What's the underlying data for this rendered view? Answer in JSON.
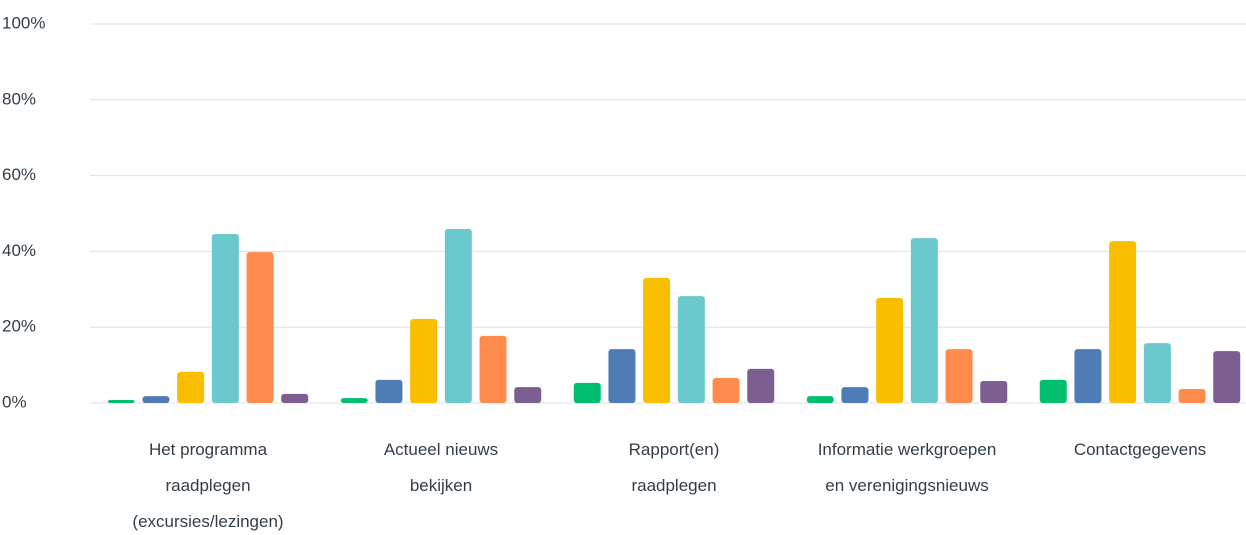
{
  "chart_data": {
    "type": "bar",
    "categories": [
      "Het programma raadplegen (excursies/lezingen)",
      "Actueel nieuws bekijken",
      "Rapport(en) raadplegen",
      "Informatie werkgroepen en verenigingsnieuws",
      "Contactgegevens"
    ],
    "series": [
      {
        "color": "#00bf6f",
        "values": [
          0.8,
          1.3,
          5.3,
          1.8,
          6.1
        ]
      },
      {
        "color": "#507cb6",
        "values": [
          1.8,
          6.1,
          14.2,
          4.2,
          14.2
        ]
      },
      {
        "color": "#f9be00",
        "values": [
          8.2,
          22.2,
          33.0,
          27.7,
          42.7
        ]
      },
      {
        "color": "#6bc8cd",
        "values": [
          44.6,
          45.9,
          28.2,
          43.5,
          15.8
        ]
      },
      {
        "color": "#ff8b4f",
        "values": [
          39.8,
          17.7,
          6.6,
          14.2,
          3.7
        ]
      },
      {
        "color": "#7d5e90",
        "values": [
          2.4,
          4.2,
          9.0,
          5.8,
          13.7
        ]
      }
    ],
    "ylim": [
      0,
      100
    ],
    "yticks": [
      {
        "value": 0,
        "label": "0%"
      },
      {
        "value": 20,
        "label": "20%"
      },
      {
        "value": 40,
        "label": "40%"
      },
      {
        "value": 60,
        "label": "60%"
      },
      {
        "value": 80,
        "label": "80%"
      },
      {
        "value": 100,
        "label": "100%"
      }
    ],
    "grid": true
  }
}
